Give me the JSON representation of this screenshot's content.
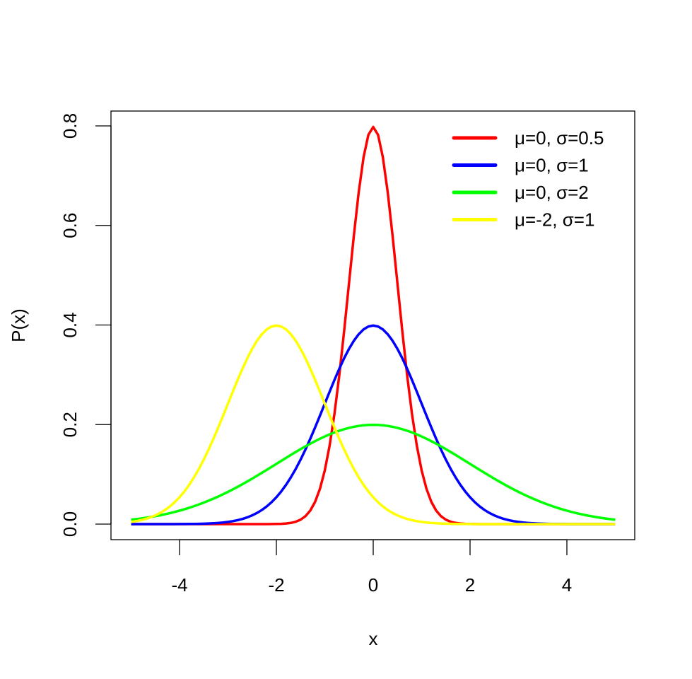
{
  "chart_data": {
    "type": "line",
    "title": "",
    "xlabel": "x",
    "ylabel": "P(x)",
    "xlim": [
      -5.3,
      5.5
    ],
    "ylim": [
      -0.032,
      0.83
    ],
    "xticks": [
      -4,
      -2,
      0,
      2,
      4
    ],
    "xtick_labels": [
      "-4",
      "-2",
      "0",
      "2",
      "4"
    ],
    "yticks": [
      0.0,
      0.2,
      0.4,
      0.6,
      0.8
    ],
    "ytick_labels": [
      "0.0",
      "0.2",
      "0.4",
      "0.6",
      "0.8"
    ],
    "grid": false,
    "legend_position": "top-right",
    "x_range": [
      -5,
      5
    ],
    "x_step": 0.1,
    "function": "normal density",
    "series": [
      {
        "name": "μ=0, σ=0.5",
        "mu": 0,
        "sigma": 0.5,
        "color": "#ff0000"
      },
      {
        "name": "μ=0, σ=1",
        "mu": 0,
        "sigma": 1,
        "color": "#0000ff"
      },
      {
        "name": "μ=0, σ=2",
        "mu": 0,
        "sigma": 2,
        "color": "#00ff00"
      },
      {
        "name": "μ=-2, σ=1",
        "mu": -2,
        "sigma": 1,
        "color": "#ffff00"
      }
    ]
  }
}
